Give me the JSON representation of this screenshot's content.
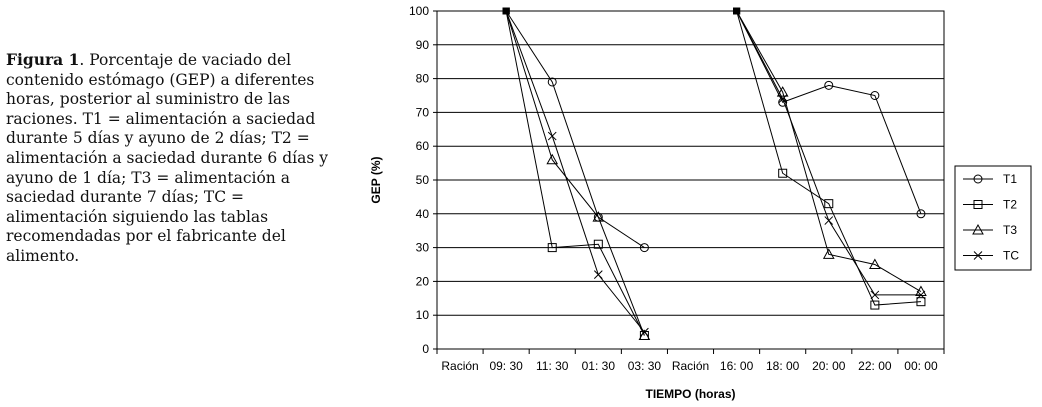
{
  "caption": {
    "figure_label": "Figura 1",
    "text_after_label": ". Porcentaje de vaciado del contenido estómago (GEP) a diferentes horas, posterior al suministro de las raciones. T1 = alimentación a saciedad durante 5 días y ayuno de 2 días; T2 = alimentación a saciedad durante 6 días y ayuno de 1 día; T3 = alimentación a saciedad durante 7 días; TC = alimentación siguiendo las tablas recomendadas por el fabricante del alimento."
  },
  "chart_data": {
    "type": "line",
    "title": "",
    "xlabel": "TIEMPO (horas)",
    "ylabel": "GEP (%)",
    "ylim": [
      0,
      100
    ],
    "yticks": [
      0,
      10,
      20,
      30,
      40,
      50,
      60,
      70,
      80,
      90,
      100
    ],
    "categories": [
      "Ración",
      "09: 30",
      "11: 30",
      "01: 30",
      "03: 30",
      "Ración",
      "16: 00",
      "18: 00",
      "20: 00",
      "22: 00",
      "00: 00"
    ],
    "grid": true,
    "legend_position": "right",
    "series": [
      {
        "name": "T1",
        "marker": "circle",
        "values": [
          null,
          100,
          79,
          39,
          30,
          null,
          100,
          73,
          78,
          75,
          40
        ]
      },
      {
        "name": "T2",
        "marker": "square",
        "values": [
          null,
          100,
          30,
          31,
          4,
          null,
          100,
          52,
          43,
          13,
          14
        ]
      },
      {
        "name": "T3",
        "marker": "triangle",
        "values": [
          null,
          100,
          56,
          39,
          4,
          null,
          100,
          76,
          28,
          25,
          17
        ]
      },
      {
        "name": "TC",
        "marker": "x",
        "values": [
          null,
          100,
          63,
          22,
          5,
          null,
          100,
          74,
          38,
          16,
          16
        ]
      }
    ]
  }
}
